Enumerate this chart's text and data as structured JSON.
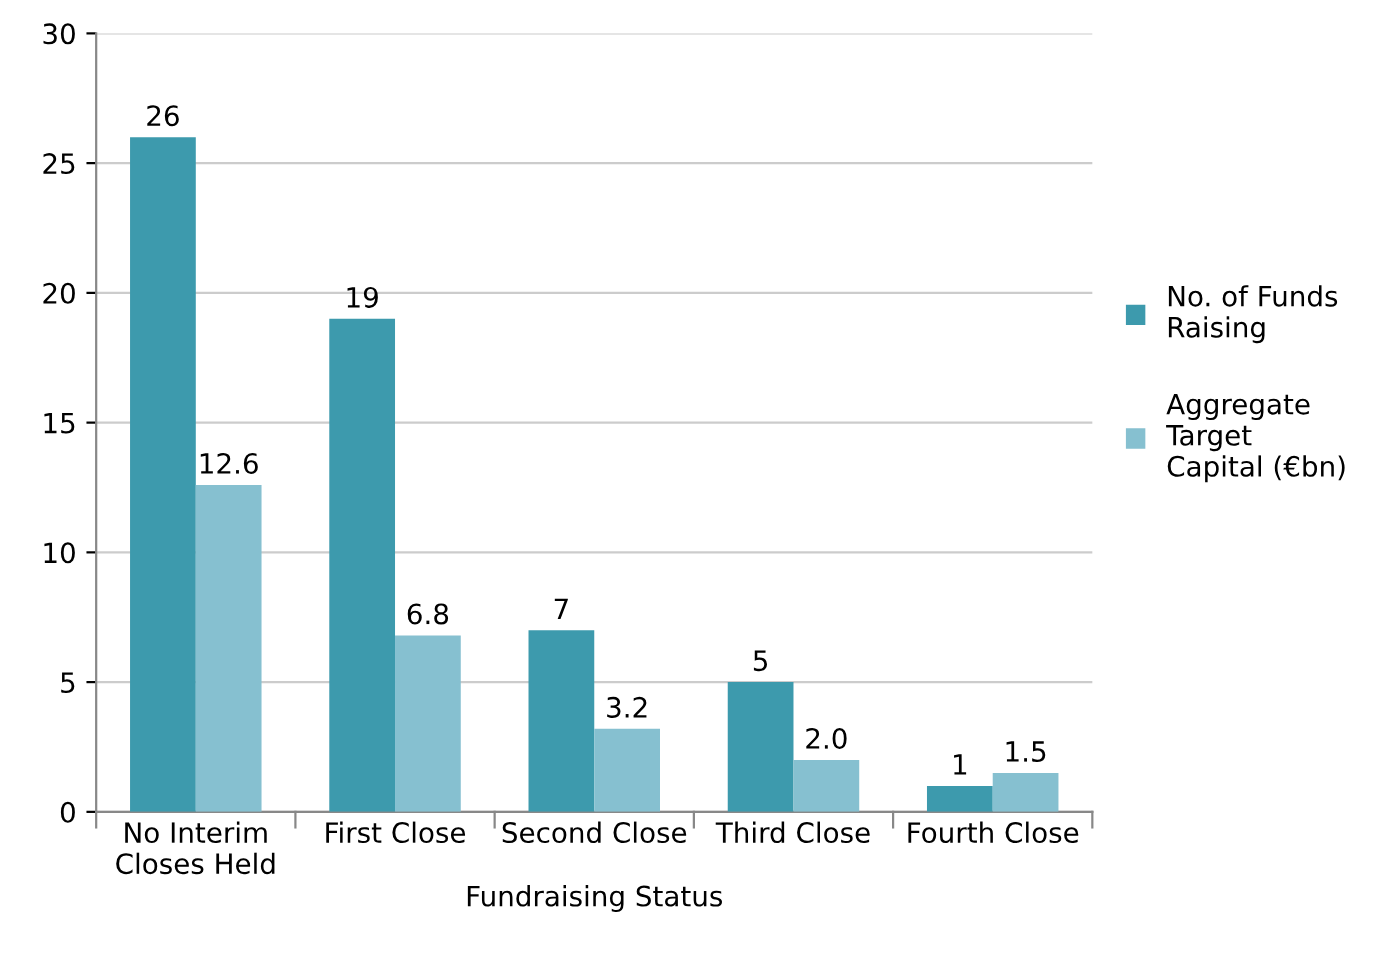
{
  "chart_data": {
    "type": "bar",
    "xlabel": "Fundraising Status",
    "categories": [
      "No Interim Closes Held",
      "First Close",
      "Second Close",
      "Third Close",
      "Fourth Close"
    ],
    "series": [
      {
        "name": "No. of Funds Raising",
        "color": "#3d9aad",
        "values": [
          26,
          19,
          7,
          5,
          1
        ],
        "value_labels": [
          "26",
          "19",
          "7",
          "5",
          "1"
        ]
      },
      {
        "name": "Aggregate Target Capital (€bn)",
        "color": "#86c0d0",
        "values": [
          12.6,
          6.8,
          3.2,
          2.0,
          1.5
        ],
        "value_labels": [
          "12.6",
          "6.8",
          "3.2",
          "2.0",
          "1.5"
        ]
      }
    ],
    "ylim": [
      0,
      30
    ],
    "yticks": [
      0,
      5,
      10,
      15,
      20,
      25,
      30
    ],
    "grid": "y",
    "legend": "right"
  }
}
